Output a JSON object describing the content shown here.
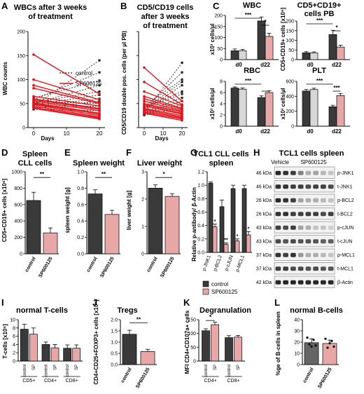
{
  "panels": {
    "A": {
      "letter": "A",
      "title_lines": [
        "WBCs after 3 weeks",
        "of treatment"
      ],
      "ylabel": "WBC counts",
      "xlabel": "Days",
      "xticks": [
        "0",
        "10",
        "20"
      ],
      "yticks": [
        "0",
        "50",
        "100",
        "150",
        "200"
      ],
      "legend": [
        "control",
        "SP600125"
      ]
    },
    "B": {
      "letter": "B",
      "title_lines": [
        "CD5/CD19 cells",
        "after 3 weeks",
        "of treatment"
      ],
      "ylabel": "CD5/CD19 double pos. cells (per µl PB)",
      "xlabel": "Days",
      "xticks": [
        "0",
        "10",
        "20"
      ]
    },
    "C": {
      "letter": "C",
      "sig3": "***",
      "sig1": "*",
      "WBC": {
        "title": "WBC",
        "ylabel": "x10³ cells/µl",
        "yticks": [
          "0",
          "50",
          "100",
          "150",
          "200"
        ],
        "xticks": [
          "d0",
          "d22"
        ]
      },
      "CD": {
        "title_lines": [
          "CD5+CD19+",
          "cells PB"
        ],
        "ylabel": "CD5+CD19+ cells [x10⁶]",
        "yticks": [
          "0",
          "50",
          "100",
          "150",
          "200"
        ],
        "xticks": [
          "d0",
          "d22"
        ]
      },
      "RBC": {
        "title": "RBC",
        "ylabel": "x10³ cells/µl",
        "yticks": [
          "0",
          "2",
          "4",
          "6",
          "8"
        ],
        "xticks": [
          "d0",
          "d22"
        ]
      },
      "PLT": {
        "title": "PLT",
        "ylabel": "x10³ cells/µl",
        "yticks": [
          "0",
          "200",
          "400",
          "600"
        ],
        "xticks": [
          "d0",
          "d22"
        ]
      }
    },
    "D": {
      "letter": "D",
      "title_lines": [
        "Spleen",
        "CLL cells"
      ],
      "ylabel": "CD5+CD19+ cells [x10⁶]",
      "yticks": [
        "0",
        "200",
        "400",
        "600",
        "800",
        "1000"
      ],
      "cats": [
        "control",
        "SP600125"
      ],
      "sig": "**"
    },
    "E": {
      "letter": "E",
      "title": "Spleen weight",
      "ylabel": "spleen weight [g]",
      "yticks": [
        "0.0",
        "0.2",
        "0.4",
        "0.6",
        "0.8",
        "1.0"
      ],
      "cats": [
        "control",
        "SP600125"
      ],
      "sig": "**"
    },
    "F": {
      "letter": "F",
      "title": "Liver weight",
      "ylabel": "liver weight [g]",
      "yticks": [
        "0",
        "1",
        "2",
        "3"
      ],
      "cats": [
        "control",
        "SP600125"
      ],
      "sig": "*"
    },
    "G": {
      "letter": "G",
      "title_lines": [
        "TCL1 CLL cells",
        "spleen"
      ],
      "ylabel": "Relative p-antibody/ β-Actin",
      "yticks": [
        "0.0",
        "0.2",
        "0.4",
        "0.6",
        "0.8",
        "1.0",
        "1.2"
      ],
      "cats": [
        "p-JNK1",
        "p-BCL2",
        "p-cJUN",
        "p-MCL1"
      ],
      "legend": [
        "control",
        "SP600125"
      ],
      "sigs": [
        "*",
        "**",
        "*",
        "*"
      ]
    },
    "H": {
      "letter": "H",
      "title": "TCL1 cells spleen",
      "col_headers": [
        "Vehicle",
        "SP600125"
      ],
      "rows": [
        {
          "kda": "46 kDa",
          "name": "p-JNK1"
        },
        {
          "kda": "46 kDa",
          "name": "t-JNK1"
        },
        {
          "kda": "26 kDa",
          "name": "p-BCL2"
        },
        {
          "kda": "26 kDa",
          "name": "t-BCL2"
        },
        {
          "kda": "43 kDa",
          "name": "p-cJUN"
        },
        {
          "kda": "43 kDa",
          "name": "t-cJUN"
        },
        {
          "kda": "37 kDa",
          "name": "p-MCL1"
        },
        {
          "kda": "37 kDa",
          "name": "t-MCL1"
        },
        {
          "kda": "42 kDa",
          "name": "β-Actin"
        }
      ]
    },
    "I": {
      "letter": "I",
      "title": "normal T-cells",
      "ylabel": "T-cells [x10⁶]",
      "yticks": [
        "0",
        "2",
        "4",
        "6",
        "8",
        "10"
      ],
      "cats": [
        "control",
        "SP",
        "control",
        "SP",
        "control",
        "SP"
      ],
      "groups": [
        "CD5+",
        "CD4+",
        "CD8+"
      ]
    },
    "J": {
      "letter": "J",
      "title": "Tregs",
      "ylabel": "CD4+CD25+FOXP3+ cells [x10⁶]",
      "yticks": [
        "0.0",
        "0.5",
        "1.0",
        "1.5",
        "2.0"
      ],
      "cats": [
        "control",
        "SP600125"
      ],
      "sig": "**"
    },
    "K": {
      "letter": "K",
      "title": "Degranulation",
      "ylabel": "MFI CD4+CD107a+ cells",
      "yticks": [
        "0",
        "50",
        "100",
        "150"
      ],
      "cats": [
        "control",
        "SP",
        "control",
        "SP"
      ],
      "groups": [
        "CD4+",
        "CD8+"
      ],
      "sig": "*"
    },
    "L": {
      "letter": "L",
      "title": "normal B-cells",
      "ylabel": "%ge of B-cells in spleen",
      "yticks": [
        "0",
        "10",
        "20",
        "30",
        "40"
      ],
      "cats": [
        "control",
        "SP600125"
      ]
    }
  },
  "colors": {
    "control": "#3a3a3a",
    "treated": "#e8a7a7",
    "red_line": "#e0141b",
    "light": "#d7d7d7"
  },
  "chart_data": [
    {
      "panel": "A",
      "type": "line",
      "x": [
        0,
        20
      ],
      "ylim": [
        0,
        200
      ],
      "series": [
        {
          "name": "control",
          "lines": [
            [
              45,
              140
            ],
            [
              58,
              115
            ],
            [
              62,
              98
            ],
            [
              50,
              88
            ],
            [
              52,
              75
            ],
            [
              48,
              68
            ],
            [
              45,
              60
            ],
            [
              40,
              55
            ],
            [
              55,
              50
            ],
            [
              42,
              45
            ],
            [
              38,
              35
            ]
          ]
        },
        {
          "name": "SP600125",
          "lines": [
            [
              152,
              70
            ],
            [
              100,
              58
            ],
            [
              88,
              52
            ],
            [
              82,
              50
            ],
            [
              65,
              45
            ],
            [
              60,
              40
            ],
            [
              58,
              38
            ],
            [
              55,
              35
            ],
            [
              52,
              30
            ],
            [
              50,
              28
            ],
            [
              48,
              25
            ],
            [
              45,
              22
            ],
            [
              42,
              20
            ],
            [
              40,
              18
            ]
          ]
        }
      ]
    },
    {
      "panel": "B",
      "type": "line",
      "x": [
        0,
        20
      ],
      "ylim": [
        0,
        200
      ],
      "series": [
        {
          "name": "control",
          "lines": [
            [
              30,
              135
            ],
            [
              40,
              115
            ],
            [
              45,
              100
            ],
            [
              38,
              95
            ],
            [
              35,
              88
            ],
            [
              42,
              75
            ],
            [
              40,
              70
            ],
            [
              33,
              62
            ],
            [
              30,
              55
            ],
            [
              28,
              48
            ],
            [
              26,
              42
            ]
          ]
        },
        {
          "name": "SP600125",
          "lines": [
            [
              125,
              55
            ],
            [
              95,
              48
            ],
            [
              75,
              45
            ],
            [
              65,
              40
            ],
            [
              60,
              38
            ],
            [
              55,
              35
            ],
            [
              50,
              33
            ],
            [
              48,
              30
            ],
            [
              45,
              28
            ],
            [
              40,
              25
            ],
            [
              38,
              22
            ],
            [
              35,
              20
            ],
            [
              32,
              18
            ],
            [
              30,
              15
            ]
          ]
        }
      ]
    },
    {
      "panel": "C-WBC",
      "type": "bar",
      "categories": [
        "d0",
        "d22"
      ],
      "ylim": [
        0,
        200
      ],
      "values": [
        [
          40,
          40
        ],
        [
          175,
          105
        ]
      ],
      "errors": [
        [
          8,
          6
        ],
        [
          18,
          14
        ]
      ]
    },
    {
      "panel": "C-CD5CD19",
      "type": "bar",
      "categories": [
        "d0",
        "d22"
      ],
      "ylim": [
        0,
        200
      ],
      "values": [
        [
          35,
          35
        ],
        [
          130,
          65
        ]
      ],
      "errors": [
        [
          6,
          5
        ],
        [
          22,
          10
        ]
      ]
    },
    {
      "panel": "C-RBC",
      "type": "bar",
      "categories": [
        "d0",
        "d22"
      ],
      "ylim": [
        0,
        8
      ],
      "values": [
        [
          6.8,
          6.6
        ],
        [
          5.1,
          6.0
        ]
      ],
      "errors": [
        [
          0.2,
          0.2
        ],
        [
          0.3,
          0.3
        ]
      ]
    },
    {
      "panel": "C-PLT",
      "type": "bar",
      "categories": [
        "d0",
        "d22"
      ],
      "ylim": [
        0,
        600
      ],
      "values": [
        [
          470,
          490
        ],
        [
          260,
          410
        ]
      ],
      "errors": [
        [
          20,
          18
        ],
        [
          20,
          28
        ]
      ]
    },
    {
      "panel": "D",
      "type": "bar",
      "categories": [
        "control",
        "SP600125"
      ],
      "values": [
        650,
        255
      ],
      "errors": [
        100,
        60
      ],
      "ylim": [
        0,
        1000
      ]
    },
    {
      "panel": "E",
      "type": "bar",
      "categories": [
        "control",
        "SP600125"
      ],
      "values": [
        0.73,
        0.48
      ],
      "errors": [
        0.05,
        0.05
      ],
      "ylim": [
        0,
        1.0
      ]
    },
    {
      "panel": "F",
      "type": "bar",
      "categories": [
        "control",
        "SP600125"
      ],
      "values": [
        2.4,
        2.1
      ],
      "errors": [
        0.12,
        0.1
      ],
      "ylim": [
        0,
        3
      ]
    },
    {
      "panel": "G",
      "type": "bar",
      "categories": [
        "p-JNK1",
        "p-BCL2",
        "p-cJUN",
        "p-MCL1"
      ],
      "ylim": [
        0,
        1.2
      ],
      "series": [
        {
          "name": "control",
          "values": [
            1.03,
            0.68,
            0.95,
            0.95
          ]
        },
        {
          "name": "SP600125",
          "values": [
            0.38,
            0.12,
            0.17,
            0.26
          ]
        }
      ],
      "errors": [
        [
          0.02,
          0.1,
          0.05,
          0.05
        ],
        [
          0.04,
          0.02,
          0.03,
          0.05
        ]
      ]
    },
    {
      "panel": "I",
      "type": "bar",
      "categories": [
        "CD5+",
        "CD4+",
        "CD8+"
      ],
      "ylim": [
        0,
        10
      ],
      "series": [
        {
          "name": "control",
          "values": [
            7.7,
            4.0,
            3.1
          ]
        },
        {
          "name": "SP",
          "values": [
            6.5,
            3.2,
            3.1
          ]
        }
      ],
      "errors": [
        [
          1.2,
          0.6,
          0.8
        ],
        [
          1.5,
          0.8,
          0.8
        ]
      ]
    },
    {
      "panel": "J",
      "type": "bar",
      "categories": [
        "control",
        "SP600125"
      ],
      "values": [
        1.35,
        0.58
      ],
      "errors": [
        0.18,
        0.1
      ],
      "ylim": [
        0,
        2.0
      ]
    },
    {
      "panel": "K",
      "type": "bar",
      "categories": [
        "CD4+",
        "CD8+"
      ],
      "ylim": [
        0,
        150
      ],
      "series": [
        {
          "name": "control",
          "values": [
            110,
            85
          ]
        },
        {
          "name": "SP",
          "values": [
            132,
            87
          ]
        }
      ],
      "errors": [
        [
          7,
          7
        ],
        [
          9,
          6
        ]
      ]
    },
    {
      "panel": "L",
      "type": "bar",
      "categories": [
        "control",
        "SP600125"
      ],
      "values": [
        19.5,
        18.8
      ],
      "errors": [
        3.5,
        3.0
      ],
      "ylim": [
        0,
        40
      ],
      "points": [
        [
          24,
          18,
          16,
          22,
          17
        ],
        [
          23,
          15,
          19,
          21,
          16
        ]
      ]
    }
  ]
}
